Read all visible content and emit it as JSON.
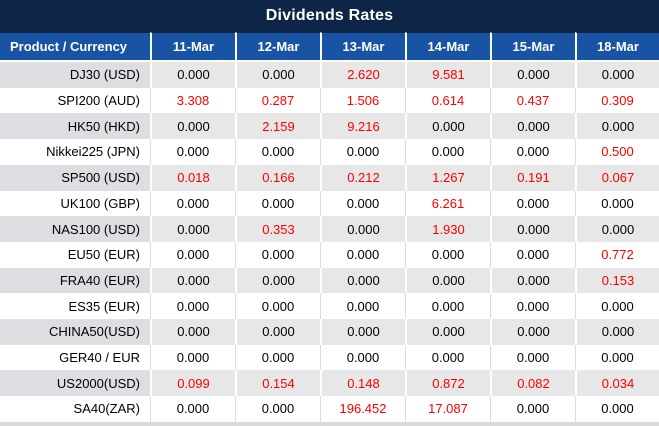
{
  "title": "Dividends Rates",
  "colors": {
    "title_bg": "#0d2547",
    "header_bg": "#1853a4",
    "row_alt_bg": "#e7e7e7",
    "product_alt_bg": "#dcdee1",
    "footer_bg": "#d9d9d9",
    "zero_text": "#000000",
    "nonzero_text": "#fe0000"
  },
  "table": {
    "product_header": "Product / Currency",
    "date_headers": [
      "11-Mar",
      "12-Mar",
      "13-Mar",
      "14-Mar",
      "15-Mar",
      "18-Mar"
    ],
    "rows": [
      {
        "product": "DJ30 (USD)",
        "values": [
          "0.000",
          "0.000",
          "2.620",
          "9.581",
          "0.000",
          "0.000"
        ]
      },
      {
        "product": "SPI200 (AUD)",
        "values": [
          "3.308",
          "0.287",
          "1.506",
          "0.614",
          "0.437",
          "0.309"
        ]
      },
      {
        "product": "HK50 (HKD)",
        "values": [
          "0.000",
          "2.159",
          "9.216",
          "0.000",
          "0.000",
          "0.000"
        ]
      },
      {
        "product": "Nikkei225 (JPN)",
        "values": [
          "0.000",
          "0.000",
          "0.000",
          "0.000",
          "0.000",
          "0.500"
        ]
      },
      {
        "product": "SP500 (USD)",
        "values": [
          "0.018",
          "0.166",
          "0.212",
          "1.267",
          "0.191",
          "0.067"
        ]
      },
      {
        "product": "UK100 (GBP)",
        "values": [
          "0.000",
          "0.000",
          "0.000",
          "6.261",
          "0.000",
          "0.000"
        ]
      },
      {
        "product": "NAS100 (USD)",
        "values": [
          "0.000",
          "0.353",
          "0.000",
          "1.930",
          "0.000",
          "0.000"
        ]
      },
      {
        "product": "EU50 (EUR)",
        "values": [
          "0.000",
          "0.000",
          "0.000",
          "0.000",
          "0.000",
          "0.772"
        ]
      },
      {
        "product": "FRA40 (EUR)",
        "values": [
          "0.000",
          "0.000",
          "0.000",
          "0.000",
          "0.000",
          "0.153"
        ]
      },
      {
        "product": "ES35 (EUR)",
        "values": [
          "0.000",
          "0.000",
          "0.000",
          "0.000",
          "0.000",
          "0.000"
        ]
      },
      {
        "product": "CHINA50(USD)",
        "values": [
          "0.000",
          "0.000",
          "0.000",
          "0.000",
          "0.000",
          "0.000"
        ]
      },
      {
        "product": "GER40 / EUR",
        "values": [
          "0.000",
          "0.000",
          "0.000",
          "0.000",
          "0.000",
          "0.000"
        ]
      },
      {
        "product": "US2000(USD)",
        "values": [
          "0.099",
          "0.154",
          "0.148",
          "0.872",
          "0.082",
          "0.034"
        ]
      },
      {
        "product": "SA40(ZAR)",
        "values": [
          "0.000",
          "0.000",
          "196.452",
          "17.087",
          "0.000",
          "0.000"
        ]
      }
    ]
  }
}
